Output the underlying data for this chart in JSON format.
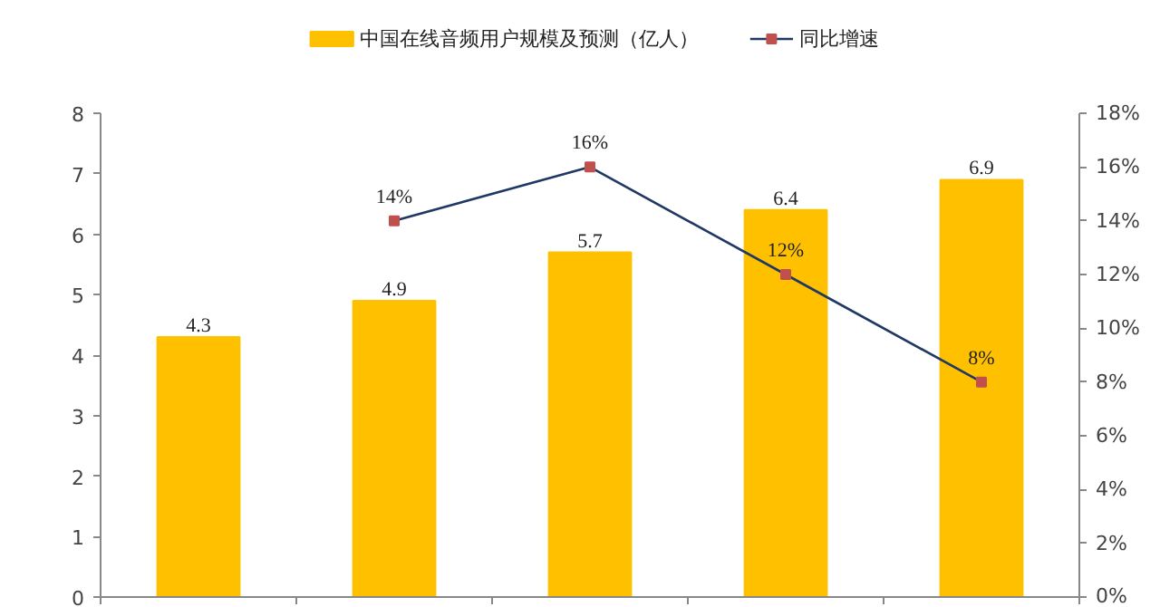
{
  "chart_data": {
    "type": "bar",
    "categories": [
      null,
      null,
      null,
      null,
      null
    ],
    "series": [
      {
        "name": "中国在线音频用户规模及预测（亿人）",
        "color": "#ffc000",
        "values": [
          4.3,
          4.9,
          5.7,
          6.4,
          6.9
        ]
      },
      {
        "name": "同比增速",
        "type": "line",
        "axis": "y2",
        "color": "#1f3864",
        "colors": [
          null,
          "#c0504d",
          "#c0504d",
          "#c0504d",
          "#c0504d"
        ],
        "values": [
          null,
          14,
          16,
          12,
          8
        ],
        "value_labels": [
          null,
          "14%",
          "16%",
          "12%",
          "8%"
        ]
      }
    ],
    "data_labels": true,
    "marker": "square",
    "legend": "top",
    "ylim": [
      0,
      8
    ],
    "yticks": [
      0,
      1,
      2,
      3,
      4,
      5,
      6,
      7,
      8
    ],
    "y2lim": [
      0,
      18
    ],
    "y2ticks": [
      {
        "value": 0,
        "label": "0%"
      },
      {
        "value": 2,
        "label": "2%"
      },
      {
        "value": 4,
        "label": "4%"
      },
      {
        "value": 6,
        "label": "6%"
      },
      {
        "value": 8,
        "label": "8%"
      },
      {
        "value": 10,
        "label": "10%"
      },
      {
        "value": 12,
        "label": "12%"
      },
      {
        "value": 14,
        "label": "14%"
      },
      {
        "value": 16,
        "label": "16%"
      },
      {
        "value": 18,
        "label": "18%"
      }
    ]
  }
}
